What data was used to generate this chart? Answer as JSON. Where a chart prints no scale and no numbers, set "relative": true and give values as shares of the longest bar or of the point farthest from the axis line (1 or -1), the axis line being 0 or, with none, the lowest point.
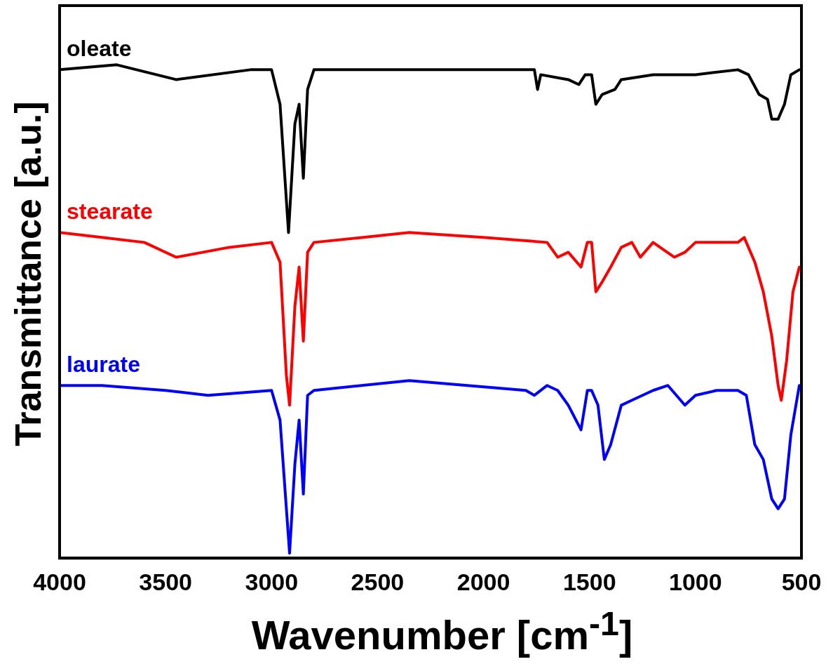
{
  "chart_data": {
    "type": "line",
    "xlabel": "Wavenumber [cm$^{-1}$]",
    "ylabel": "Transmittance [a.u.]",
    "relative": true,
    "xlim": [
      4000,
      500
    ],
    "xticks": [
      4000,
      3500,
      3000,
      2500,
      2000,
      1500,
      1000,
      500
    ],
    "grid": false,
    "legend": false,
    "marker": "none",
    "line_style": "solid",
    "series": [
      {
        "name": "oleate",
        "color": "#000000",
        "x": [
          4000,
          3730,
          3450,
          3100,
          3000,
          2960,
          2920,
          2890,
          2870,
          2850,
          2830,
          2800,
          2350,
          1800,
          1760,
          1745,
          1730,
          1600,
          1550,
          1520,
          1490,
          1470,
          1440,
          1380,
          1350,
          1200,
          1000,
          800,
          750,
          700,
          660,
          640,
          610,
          580,
          550,
          510
        ],
        "values": [
          0.99,
          1.0,
          0.97,
          0.99,
          0.99,
          0.92,
          0.66,
          0.88,
          0.92,
          0.77,
          0.95,
          0.99,
          0.99,
          0.99,
          0.99,
          0.95,
          0.98,
          0.97,
          0.96,
          0.98,
          0.98,
          0.92,
          0.94,
          0.95,
          0.97,
          0.98,
          0.98,
          0.99,
          0.98,
          0.94,
          0.93,
          0.89,
          0.89,
          0.92,
          0.98,
          0.99
        ]
      },
      {
        "name": "stearate",
        "color": "#ff0000",
        "x": [
          4000,
          3800,
          3600,
          3450,
          3200,
          3000,
          2960,
          2930,
          2915,
          2890,
          2870,
          2850,
          2830,
          2800,
          2350,
          2000,
          1700,
          1650,
          1600,
          1540,
          1510,
          1490,
          1470,
          1440,
          1400,
          1350,
          1300,
          1260,
          1200,
          1100,
          1050,
          1000,
          900,
          800,
          770,
          720,
          680,
          640,
          610,
          595,
          570,
          540,
          510
        ],
        "values": [
          0.66,
          0.65,
          0.64,
          0.61,
          0.63,
          0.64,
          0.6,
          0.37,
          0.31,
          0.51,
          0.59,
          0.44,
          0.62,
          0.64,
          0.66,
          0.65,
          0.64,
          0.61,
          0.62,
          0.59,
          0.64,
          0.64,
          0.54,
          0.56,
          0.59,
          0.63,
          0.64,
          0.61,
          0.64,
          0.61,
          0.62,
          0.64,
          0.64,
          0.64,
          0.65,
          0.6,
          0.54,
          0.45,
          0.35,
          0.32,
          0.4,
          0.54,
          0.59
        ]
      },
      {
        "name": "laurate",
        "color": "#0000ff",
        "x": [
          4000,
          3800,
          3500,
          3300,
          3000,
          2960,
          2930,
          2915,
          2890,
          2870,
          2850,
          2830,
          2800,
          2350,
          1800,
          1760,
          1700,
          1650,
          1600,
          1540,
          1510,
          1490,
          1460,
          1430,
          1400,
          1350,
          1300,
          1200,
          1130,
          1050,
          1000,
          900,
          800,
          760,
          720,
          680,
          640,
          610,
          580,
          550,
          510
        ],
        "values": [
          0.35,
          0.35,
          0.34,
          0.33,
          0.34,
          0.28,
          0.1,
          0.01,
          0.19,
          0.28,
          0.13,
          0.33,
          0.34,
          0.36,
          0.34,
          0.33,
          0.35,
          0.34,
          0.31,
          0.26,
          0.34,
          0.34,
          0.31,
          0.2,
          0.23,
          0.31,
          0.32,
          0.34,
          0.35,
          0.31,
          0.33,
          0.34,
          0.34,
          0.33,
          0.23,
          0.2,
          0.12,
          0.1,
          0.12,
          0.25,
          0.35
        ]
      }
    ]
  }
}
